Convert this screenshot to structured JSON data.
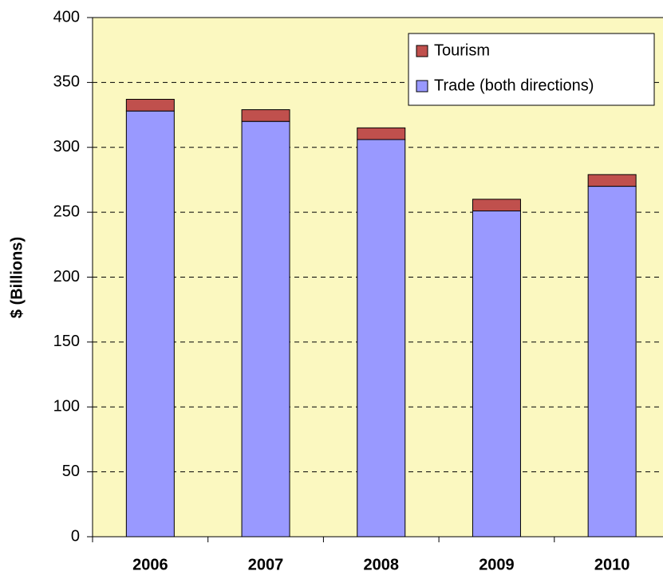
{
  "chart_data": {
    "type": "stacked-bar",
    "y_label": "$ (Billions)",
    "categories": [
      "2006",
      "2007",
      "2008",
      "2009",
      "2010"
    ],
    "series": [
      {
        "name": "Trade (both directions)",
        "color": "#9999ff",
        "values": [
          328,
          320,
          306,
          251,
          270
        ]
      },
      {
        "name": "Tourism",
        "color": "#c0504d",
        "values": [
          9,
          9,
          9,
          9,
          9
        ]
      }
    ],
    "ylim": [
      0,
      400
    ],
    "yticks": [
      0,
      50,
      100,
      150,
      200,
      250,
      300,
      350,
      400
    ],
    "grid": true,
    "legend": "top-right",
    "background": "#fbf8c0"
  }
}
